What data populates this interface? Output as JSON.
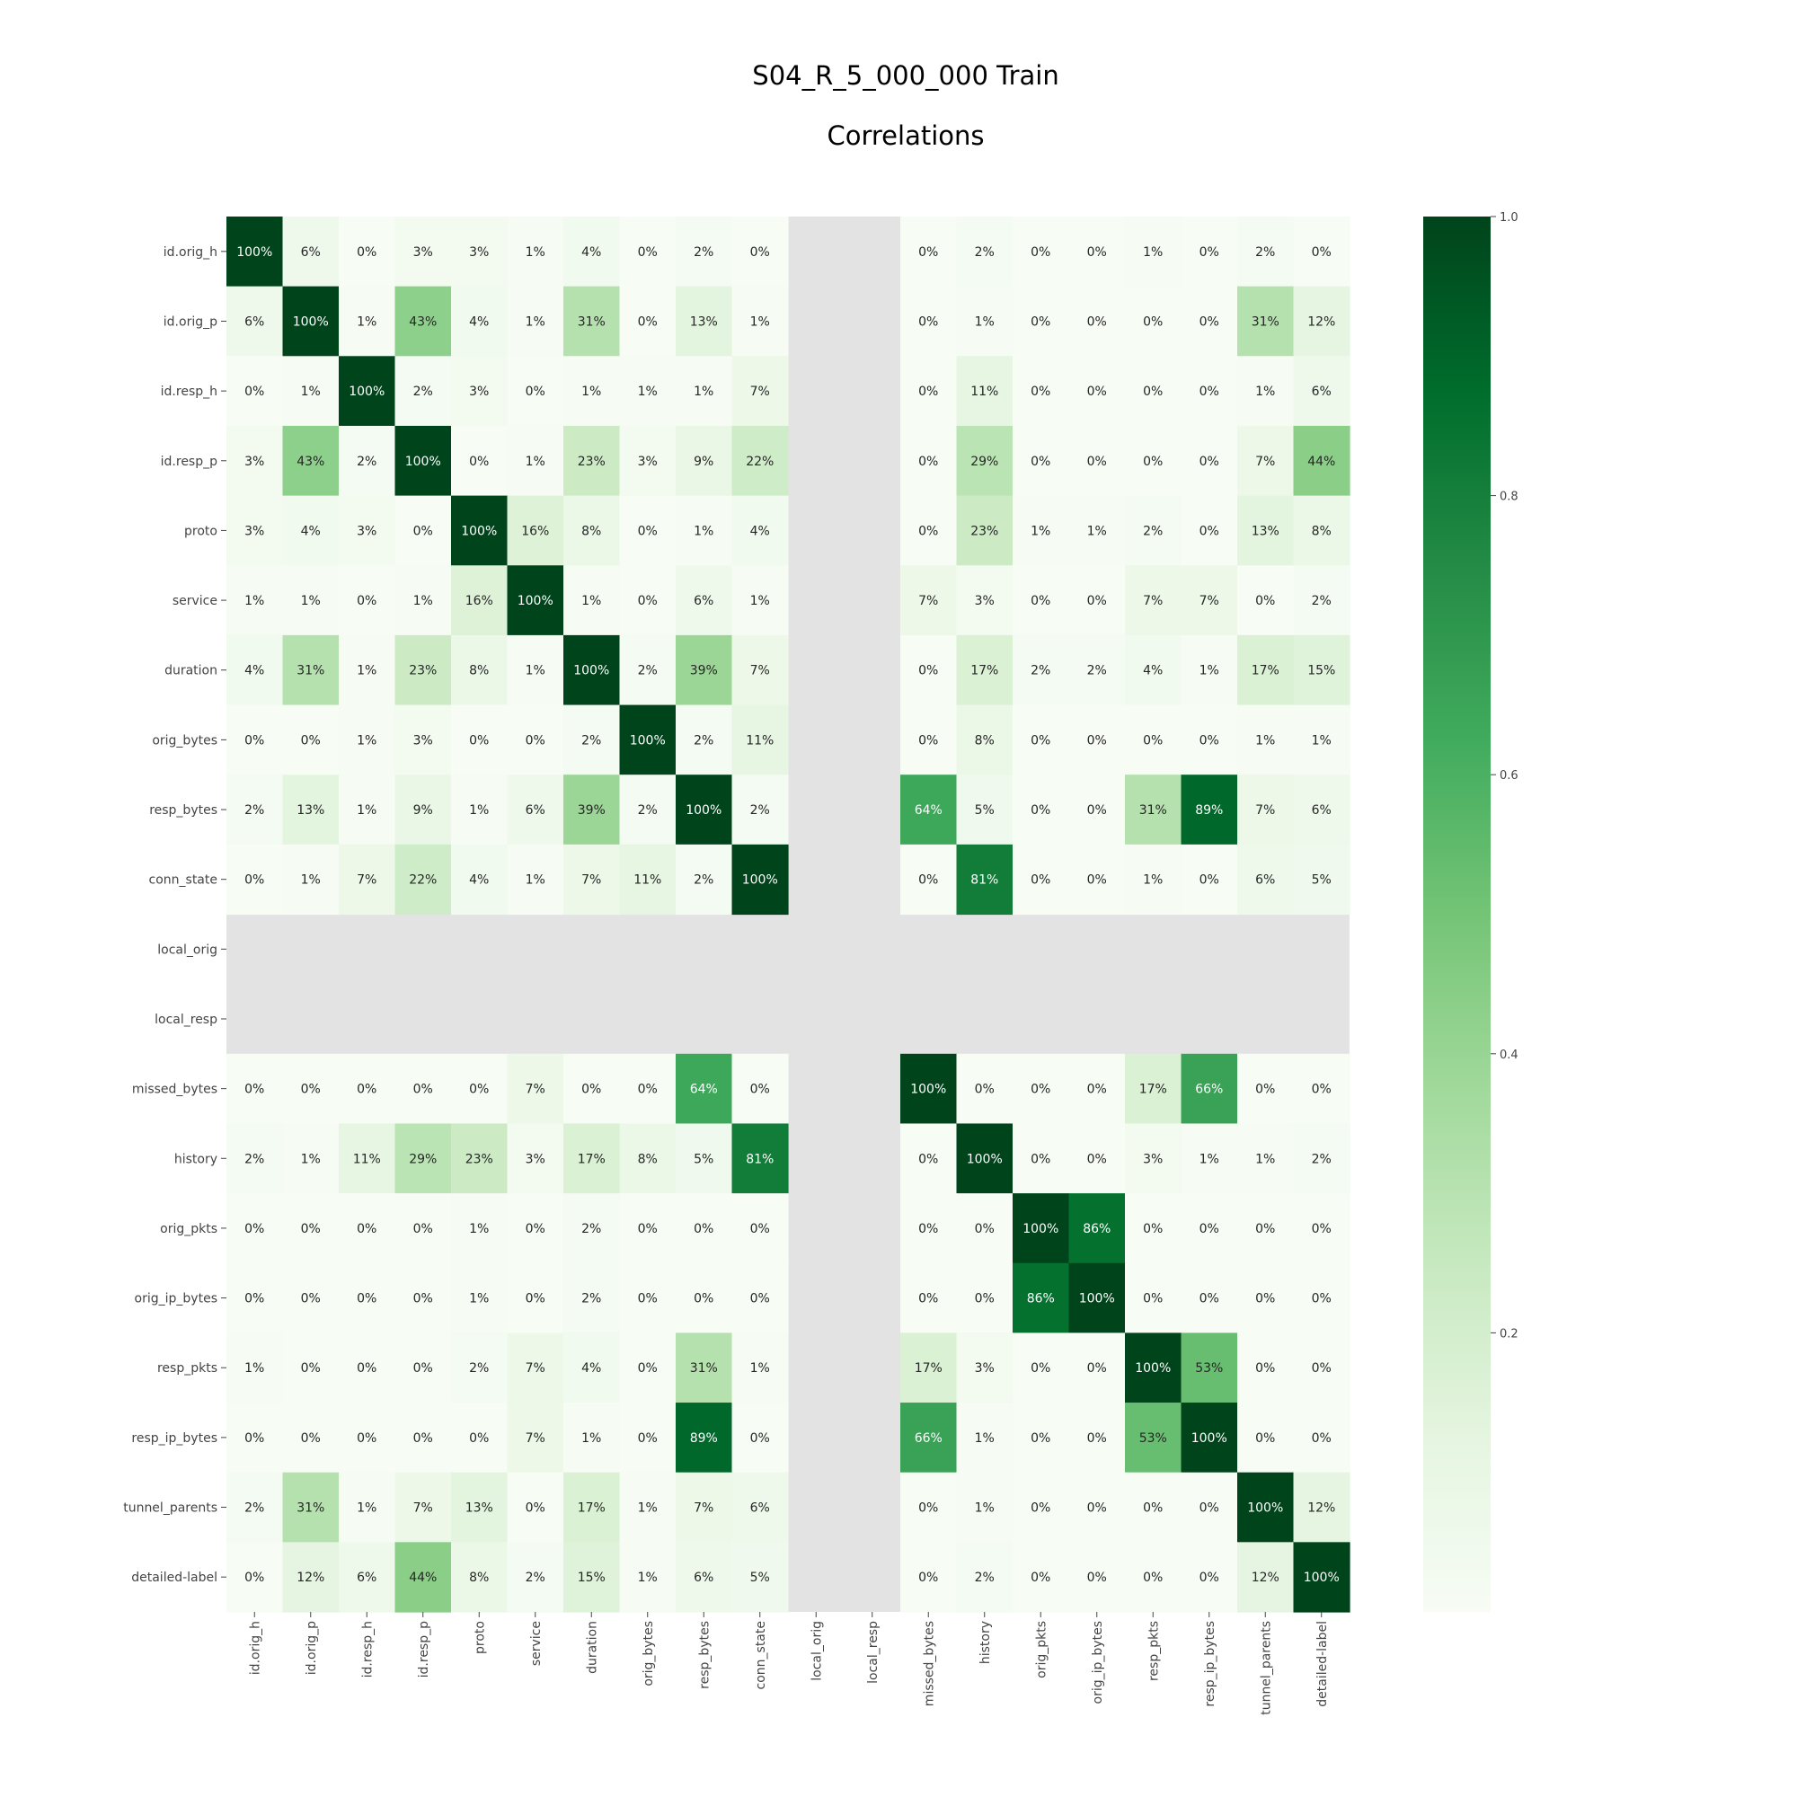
{
  "chart_data": {
    "type": "heatmap",
    "title": "S04_R_5_000_000 Train",
    "subtitle": "Correlations",
    "colormap": "Greens",
    "nan_color": "#e3e3e3",
    "value_format": "percent",
    "labels": [
      "id.orig_h",
      "id.orig_p",
      "id.resp_h",
      "id.resp_p",
      "proto",
      "service",
      "duration",
      "orig_bytes",
      "resp_bytes",
      "conn_state",
      "local_orig",
      "local_resp",
      "missed_bytes",
      "history",
      "orig_pkts",
      "orig_ip_bytes",
      "resp_pkts",
      "resp_ip_bytes",
      "tunnel_parents",
      "detailed-label"
    ],
    "colorbar": {
      "range": [
        0,
        1.0
      ],
      "ticks": [
        "0.2",
        "0.4",
        "0.6",
        "0.8",
        "1.0"
      ],
      "tick_values": [
        0.2,
        0.4,
        0.6,
        0.8,
        1.0
      ]
    },
    "matrix": [
      [
        1.0,
        0.06,
        0.0,
        0.03,
        0.03,
        0.01,
        0.04,
        0.0,
        0.02,
        0.0,
        null,
        null,
        0.0,
        0.02,
        0.0,
        0.0,
        0.01,
        0.0,
        0.02,
        0.0
      ],
      [
        0.06,
        1.0,
        0.01,
        0.43,
        0.04,
        0.01,
        0.31,
        0.0,
        0.13,
        0.01,
        null,
        null,
        0.0,
        0.01,
        0.0,
        0.0,
        0.0,
        0.0,
        0.31,
        0.12
      ],
      [
        0.0,
        0.01,
        1.0,
        0.02,
        0.03,
        0.0,
        0.01,
        0.01,
        0.01,
        0.07,
        null,
        null,
        0.0,
        0.11,
        0.0,
        0.0,
        0.0,
        0.0,
        0.01,
        0.06
      ],
      [
        0.03,
        0.43,
        0.02,
        1.0,
        0.0,
        0.01,
        0.23,
        0.03,
        0.09,
        0.22,
        null,
        null,
        0.0,
        0.29,
        0.0,
        0.0,
        0.0,
        0.0,
        0.07,
        0.44
      ],
      [
        0.03,
        0.04,
        0.03,
        0.0,
        1.0,
        0.16,
        0.08,
        0.0,
        0.01,
        0.04,
        null,
        null,
        0.0,
        0.23,
        0.01,
        0.01,
        0.02,
        0.0,
        0.13,
        0.08
      ],
      [
        0.01,
        0.01,
        0.0,
        0.01,
        0.16,
        1.0,
        0.01,
        0.0,
        0.06,
        0.01,
        null,
        null,
        0.07,
        0.03,
        0.0,
        0.0,
        0.07,
        0.07,
        0.0,
        0.02
      ],
      [
        0.04,
        0.31,
        0.01,
        0.23,
        0.08,
        0.01,
        1.0,
        0.02,
        0.39,
        0.07,
        null,
        null,
        0.0,
        0.17,
        0.02,
        0.02,
        0.04,
        0.01,
        0.17,
        0.15
      ],
      [
        0.0,
        0.0,
        0.01,
        0.03,
        0.0,
        0.0,
        0.02,
        1.0,
        0.02,
        0.11,
        null,
        null,
        0.0,
        0.08,
        0.0,
        0.0,
        0.0,
        0.0,
        0.01,
        0.01
      ],
      [
        0.02,
        0.13,
        0.01,
        0.09,
        0.01,
        0.06,
        0.39,
        0.02,
        1.0,
        0.02,
        null,
        null,
        0.64,
        0.05,
        0.0,
        0.0,
        0.31,
        0.89,
        0.07,
        0.06
      ],
      [
        0.0,
        0.01,
        0.07,
        0.22,
        0.04,
        0.01,
        0.07,
        0.11,
        0.02,
        1.0,
        null,
        null,
        0.0,
        0.81,
        0.0,
        0.0,
        0.01,
        0.0,
        0.06,
        0.05
      ],
      [
        null,
        null,
        null,
        null,
        null,
        null,
        null,
        null,
        null,
        null,
        null,
        null,
        null,
        null,
        null,
        null,
        null,
        null,
        null,
        null
      ],
      [
        null,
        null,
        null,
        null,
        null,
        null,
        null,
        null,
        null,
        null,
        null,
        null,
        null,
        null,
        null,
        null,
        null,
        null,
        null,
        null
      ],
      [
        0.0,
        0.0,
        0.0,
        0.0,
        0.0,
        0.07,
        0.0,
        0.0,
        0.64,
        0.0,
        null,
        null,
        1.0,
        0.0,
        0.0,
        0.0,
        0.17,
        0.66,
        0.0,
        0.0
      ],
      [
        0.02,
        0.01,
        0.11,
        0.29,
        0.23,
        0.03,
        0.17,
        0.08,
        0.05,
        0.81,
        null,
        null,
        0.0,
        1.0,
        0.0,
        0.0,
        0.03,
        0.01,
        0.01,
        0.02
      ],
      [
        0.0,
        0.0,
        0.0,
        0.0,
        0.01,
        0.0,
        0.02,
        0.0,
        0.0,
        0.0,
        null,
        null,
        0.0,
        0.0,
        1.0,
        0.86,
        0.0,
        0.0,
        0.0,
        0.0
      ],
      [
        0.0,
        0.0,
        0.0,
        0.0,
        0.01,
        0.0,
        0.02,
        0.0,
        0.0,
        0.0,
        null,
        null,
        0.0,
        0.0,
        0.86,
        1.0,
        0.0,
        0.0,
        0.0,
        0.0
      ],
      [
        0.01,
        0.0,
        0.0,
        0.0,
        0.02,
        0.07,
        0.04,
        0.0,
        0.31,
        0.01,
        null,
        null,
        0.17,
        0.03,
        0.0,
        0.0,
        1.0,
        0.53,
        0.0,
        0.0
      ],
      [
        0.0,
        0.0,
        0.0,
        0.0,
        0.0,
        0.07,
        0.01,
        0.0,
        0.89,
        0.0,
        null,
        null,
        0.66,
        0.01,
        0.0,
        0.0,
        0.53,
        1.0,
        0.0,
        0.0
      ],
      [
        0.02,
        0.31,
        0.01,
        0.07,
        0.13,
        0.0,
        0.17,
        0.01,
        0.07,
        0.06,
        null,
        null,
        0.0,
        0.01,
        0.0,
        0.0,
        0.0,
        0.0,
        1.0,
        0.12
      ],
      [
        0.0,
        0.12,
        0.06,
        0.44,
        0.08,
        0.02,
        0.15,
        0.01,
        0.06,
        0.05,
        null,
        null,
        0.0,
        0.02,
        0.0,
        0.0,
        0.0,
        0.0,
        0.12,
        1.0
      ]
    ]
  }
}
